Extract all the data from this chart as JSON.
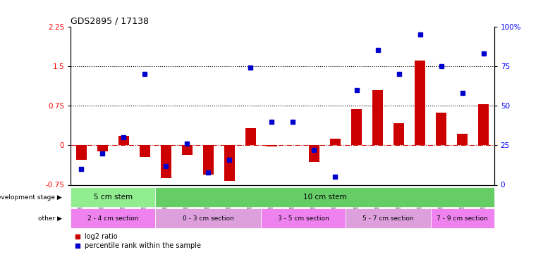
{
  "title": "GDS2895 / 17138",
  "samples": [
    "GSM35570",
    "GSM35571",
    "GSM35721",
    "GSM35725",
    "GSM35565",
    "GSM35567",
    "GSM35568",
    "GSM35569",
    "GSM35726",
    "GSM35727",
    "GSM35728",
    "GSM35729",
    "GSM35978",
    "GSM36004",
    "GSM36011",
    "GSM36012",
    "GSM36013",
    "GSM36014",
    "GSM36015",
    "GSM36016"
  ],
  "log2_ratio": [
    -0.28,
    -0.12,
    0.18,
    -0.22,
    -0.62,
    -0.18,
    -0.55,
    -0.68,
    0.32,
    -0.02,
    0.0,
    -0.32,
    0.12,
    0.68,
    1.05,
    0.42,
    1.6,
    0.62,
    0.22,
    0.78
  ],
  "pct_rank": [
    10,
    20,
    30,
    70,
    12,
    26,
    8,
    16,
    74,
    40,
    40,
    22,
    5,
    60,
    85,
    70,
    95,
    75,
    58,
    83
  ],
  "ylim_left": [
    -0.75,
    2.25
  ],
  "ylim_right": [
    0,
    100
  ],
  "hlines": [
    0.75,
    1.5
  ],
  "bar_color": "#cc0000",
  "dot_color": "#0000cc",
  "zero_line_color": "#cc0000",
  "dev_stage_groups": [
    {
      "label": "5 cm stem",
      "start": 0,
      "end": 4,
      "color": "#90ee90"
    },
    {
      "label": "10 cm stem",
      "start": 4,
      "end": 20,
      "color": "#66cc66"
    }
  ],
  "other_groups": [
    {
      "label": "2 - 4 cm section",
      "start": 0,
      "end": 4,
      "color": "#ee82ee"
    },
    {
      "label": "0 - 3 cm section",
      "start": 4,
      "end": 9,
      "color": "#dda0dd"
    },
    {
      "label": "3 - 5 cm section",
      "start": 9,
      "end": 13,
      "color": "#ee82ee"
    },
    {
      "label": "5 - 7 cm section",
      "start": 13,
      "end": 17,
      "color": "#dda0dd"
    },
    {
      "label": "7 - 9 cm section",
      "start": 17,
      "end": 20,
      "color": "#ee82ee"
    }
  ],
  "legend_items": [
    {
      "label": "log2 ratio",
      "color": "#cc0000"
    },
    {
      "label": "percentile rank within the sample",
      "color": "#0000cc"
    }
  ],
  "dev_stage_label": "development stage",
  "other_label": "other",
  "bg_color": "#ffffff",
  "right_tick_labels": [
    "0",
    "25",
    "50",
    "75",
    "100%"
  ],
  "right_tick_values": [
    0,
    25,
    50,
    75,
    100
  ],
  "left_tick_labels": [
    "-0.75",
    "0",
    "0.75",
    "1.5",
    "2.25"
  ],
  "left_tick_values": [
    -0.75,
    0,
    0.75,
    1.5,
    2.25
  ]
}
